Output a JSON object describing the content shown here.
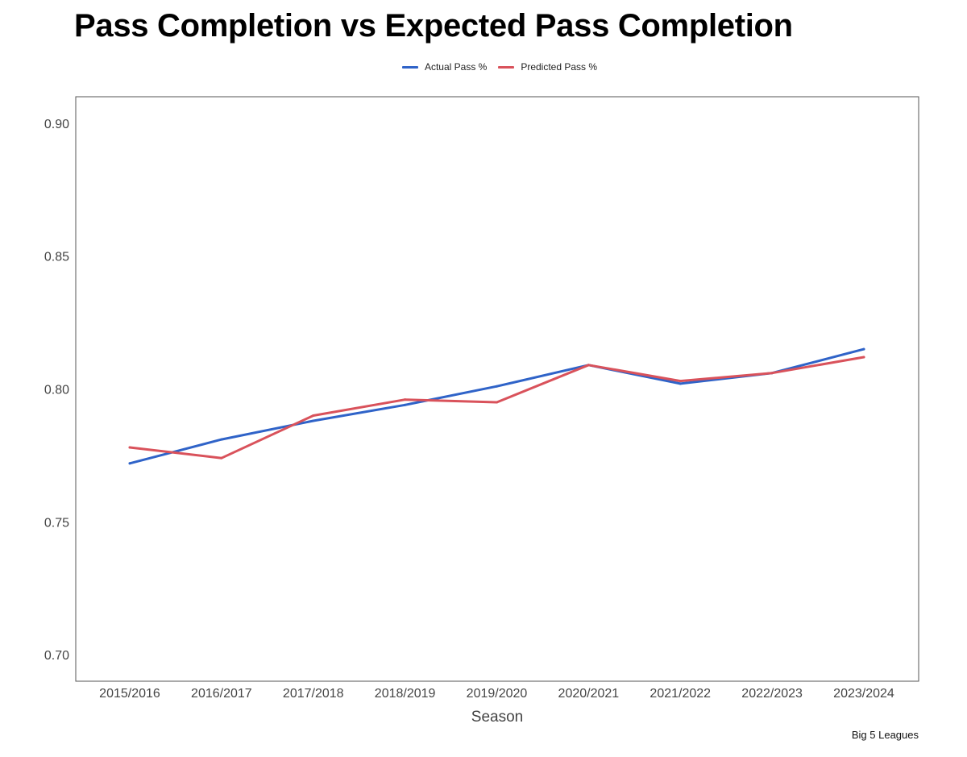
{
  "chart_data": {
    "type": "line",
    "title": "Pass Completion vs Expected Pass Completion",
    "xlabel": "Season",
    "ylabel": "",
    "categories": [
      "2015/2016",
      "2016/2017",
      "2017/2018",
      "2018/2019",
      "2019/2020",
      "2020/2021",
      "2021/2022",
      "2022/2023",
      "2023/2024"
    ],
    "series": [
      {
        "name": "Actual Pass %",
        "color": "#2f63c8",
        "values": [
          0.772,
          0.781,
          0.788,
          0.794,
          0.801,
          0.809,
          0.802,
          0.806,
          0.815
        ]
      },
      {
        "name": "Predicted Pass %",
        "color": "#d9525b",
        "values": [
          0.778,
          0.774,
          0.79,
          0.796,
          0.795,
          0.809,
          0.803,
          0.806,
          0.812
        ]
      }
    ],
    "ylim": [
      0.69,
      0.91
    ],
    "yticks": [
      "0.70",
      "0.75",
      "0.80",
      "0.85",
      "0.90"
    ],
    "grid": false,
    "legend": "top-center",
    "caption": "Big 5 Leagues"
  }
}
